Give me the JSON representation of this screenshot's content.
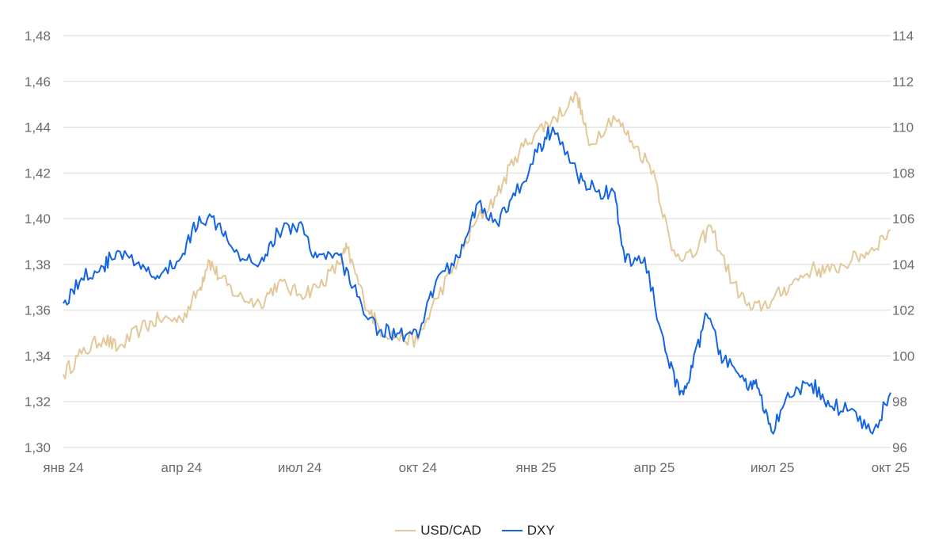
{
  "chart_data": {
    "type": "line",
    "title": "",
    "x_ticks": [
      "янв 24",
      "апр 24",
      "июл 24",
      "окт 24",
      "янв 25",
      "апр 25",
      "июл 25",
      "окт 25"
    ],
    "y_left": {
      "ticks": [
        "1,30",
        "1,32",
        "1,34",
        "1,36",
        "1,38",
        "1,40",
        "1,42",
        "1,44",
        "1,46",
        "1,48"
      ],
      "range": [
        1.3,
        1.48
      ]
    },
    "y_right": {
      "ticks": [
        "96",
        "98",
        "100",
        "102",
        "104",
        "106",
        "108",
        "110",
        "112",
        "114"
      ],
      "range": [
        96,
        114
      ]
    },
    "x_range": [
      "2024-01-01",
      "2025-10-01"
    ],
    "grid": true,
    "legend_position": "bottom",
    "series": [
      {
        "name": "USD/CAD",
        "axis": "left",
        "color": "#e3c99a",
        "points": [
          [
            "2024-01-01",
            1.332
          ],
          [
            "2024-01-15",
            1.341
          ],
          [
            "2024-02-01",
            1.348
          ],
          [
            "2024-02-12",
            1.343
          ],
          [
            "2024-03-01",
            1.352
          ],
          [
            "2024-03-15",
            1.356
          ],
          [
            "2024-04-01",
            1.356
          ],
          [
            "2024-04-15",
            1.369
          ],
          [
            "2024-04-22",
            1.382
          ],
          [
            "2024-05-01",
            1.374
          ],
          [
            "2024-05-15",
            1.366
          ],
          [
            "2024-06-01",
            1.363
          ],
          [
            "2024-06-15",
            1.372
          ],
          [
            "2024-07-01",
            1.367
          ],
          [
            "2024-07-15",
            1.37
          ],
          [
            "2024-08-01",
            1.38
          ],
          [
            "2024-08-07",
            1.387
          ],
          [
            "2024-08-20",
            1.365
          ],
          [
            "2024-09-01",
            1.352
          ],
          [
            "2024-09-15",
            1.348
          ],
          [
            "2024-10-01",
            1.347
          ],
          [
            "2024-10-15",
            1.365
          ],
          [
            "2024-11-01",
            1.382
          ],
          [
            "2024-11-15",
            1.399
          ],
          [
            "2024-12-01",
            1.41
          ],
          [
            "2024-12-15",
            1.427
          ],
          [
            "2024-12-31",
            1.438
          ],
          [
            "2025-01-15",
            1.444
          ],
          [
            "2025-02-01",
            1.454
          ],
          [
            "2025-02-10",
            1.432
          ],
          [
            "2025-03-01",
            1.445
          ],
          [
            "2025-03-15",
            1.434
          ],
          [
            "2025-04-01",
            1.421
          ],
          [
            "2025-04-15",
            1.386
          ],
          [
            "2025-05-01",
            1.383
          ],
          [
            "2025-05-15",
            1.397
          ],
          [
            "2025-06-01",
            1.372
          ],
          [
            "2025-06-15",
            1.36
          ],
          [
            "2025-07-01",
            1.364
          ],
          [
            "2025-07-15",
            1.371
          ],
          [
            "2025-08-01",
            1.378
          ],
          [
            "2025-08-15",
            1.377
          ],
          [
            "2025-09-01",
            1.382
          ],
          [
            "2025-09-15",
            1.386
          ],
          [
            "2025-10-01",
            1.395
          ]
        ]
      },
      {
        "name": "DXY",
        "axis": "right",
        "color": "#1565e0",
        "points": [
          [
            "2024-01-01",
            102.3
          ],
          [
            "2024-01-15",
            103.4
          ],
          [
            "2024-02-01",
            103.9
          ],
          [
            "2024-02-12",
            104.6
          ],
          [
            "2024-03-01",
            103.8
          ],
          [
            "2024-03-15",
            103.4
          ],
          [
            "2024-04-01",
            104.3
          ],
          [
            "2024-04-15",
            106.1
          ],
          [
            "2024-05-01",
            105.8
          ],
          [
            "2024-05-15",
            104.5
          ],
          [
            "2024-06-01",
            104.1
          ],
          [
            "2024-06-15",
            105.4
          ],
          [
            "2024-07-01",
            105.8
          ],
          [
            "2024-07-15",
            104.3
          ],
          [
            "2024-08-01",
            104.4
          ],
          [
            "2024-08-15",
            102.6
          ],
          [
            "2024-09-01",
            101.1
          ],
          [
            "2024-09-15",
            101.0
          ],
          [
            "2024-10-01",
            100.8
          ],
          [
            "2024-10-15",
            103.3
          ],
          [
            "2024-11-01",
            104.3
          ],
          [
            "2024-11-15",
            106.6
          ],
          [
            "2024-12-01",
            105.8
          ],
          [
            "2024-12-15",
            107.0
          ],
          [
            "2025-01-01",
            108.9
          ],
          [
            "2025-01-13",
            110.0
          ],
          [
            "2025-02-01",
            107.9
          ],
          [
            "2025-02-15",
            107.2
          ],
          [
            "2025-03-01",
            107.2
          ],
          [
            "2025-03-10",
            104.1
          ],
          [
            "2025-03-25",
            104.3
          ],
          [
            "2025-04-10",
            100.2
          ],
          [
            "2025-04-21",
            98.3
          ],
          [
            "2025-05-01",
            99.5
          ],
          [
            "2025-05-12",
            101.8
          ],
          [
            "2025-05-25",
            99.8
          ],
          [
            "2025-06-10",
            98.9
          ],
          [
            "2025-06-20",
            98.6
          ],
          [
            "2025-07-01",
            96.7
          ],
          [
            "2025-07-15",
            98.2
          ],
          [
            "2025-08-01",
            98.8
          ],
          [
            "2025-08-15",
            97.8
          ],
          [
            "2025-09-01",
            97.7
          ],
          [
            "2025-09-17",
            96.6
          ],
          [
            "2025-10-01",
            98.4
          ]
        ]
      }
    ]
  }
}
